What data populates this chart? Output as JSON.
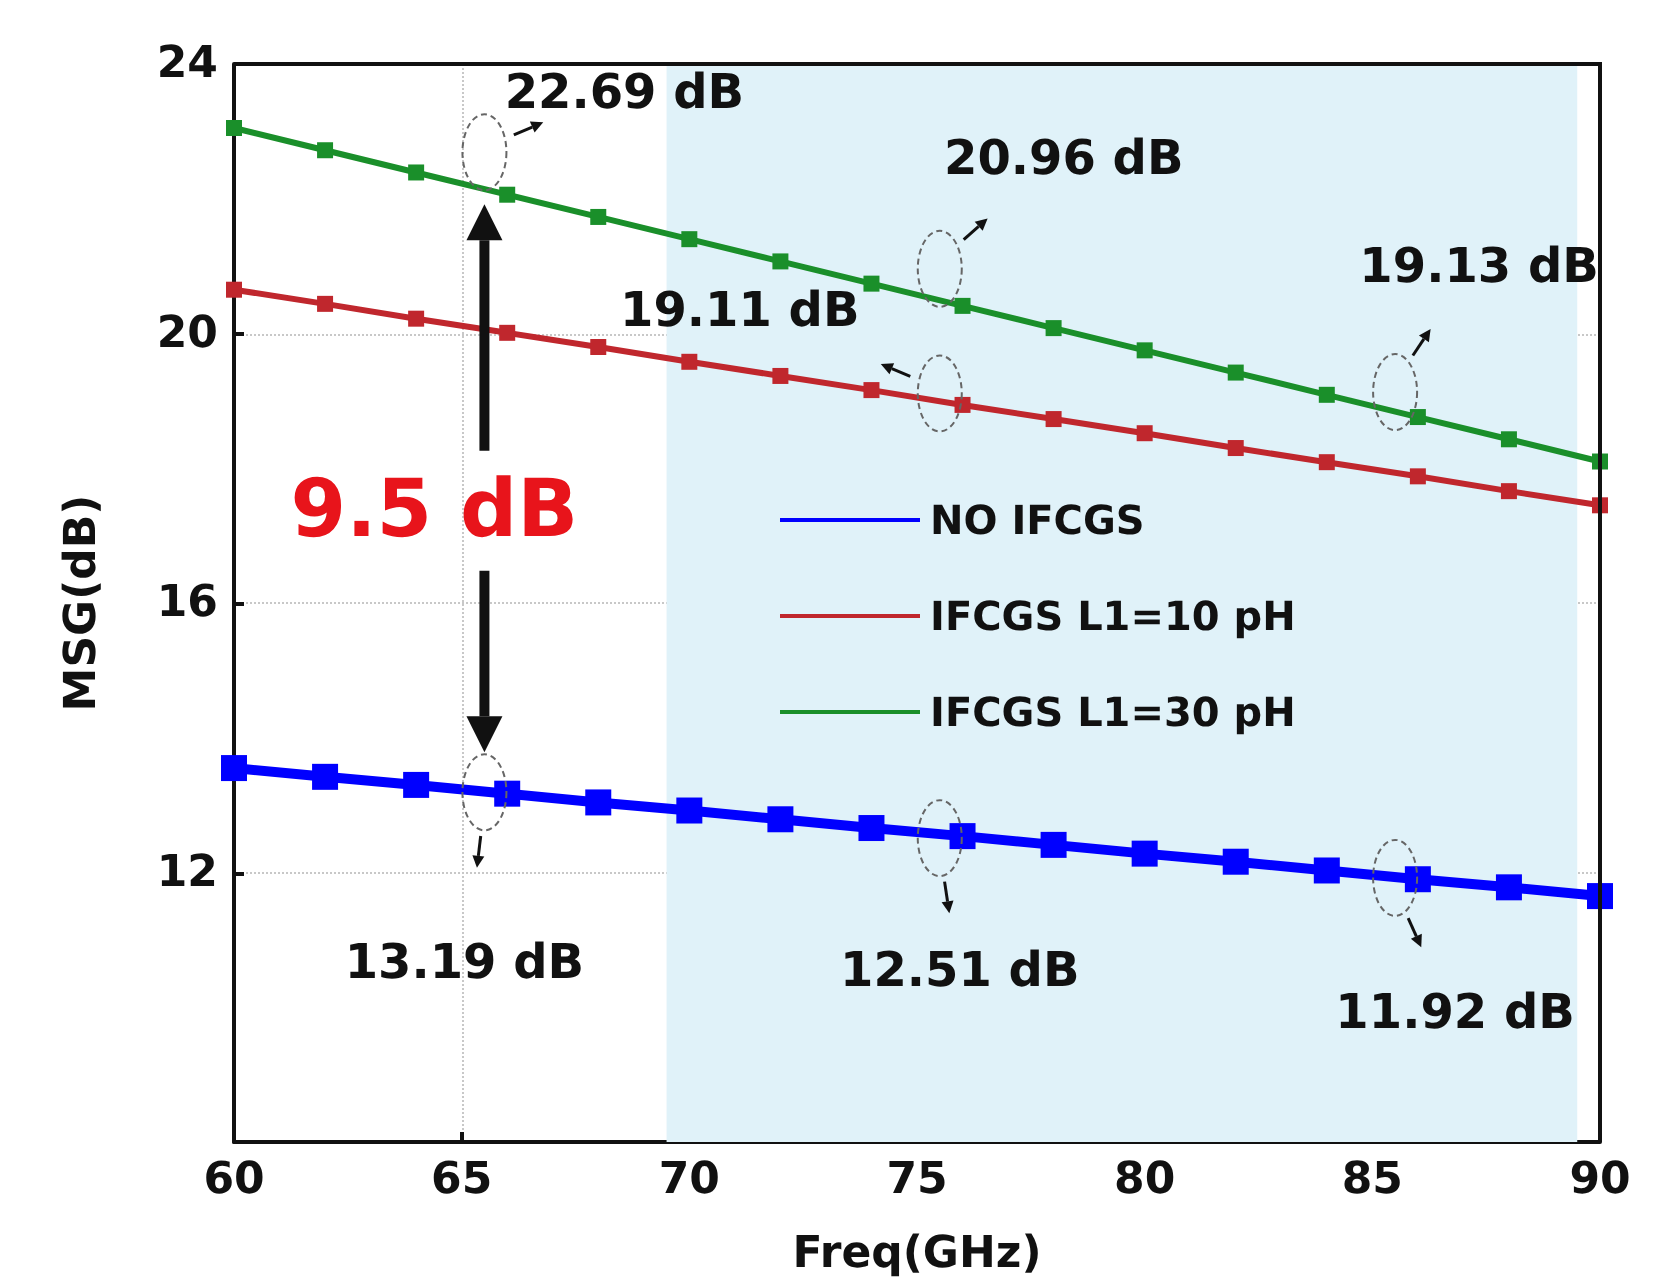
{
  "chart_data": {
    "type": "line",
    "xlabel": "Freq(GHz)",
    "ylabel": "MSG(dB)",
    "x": [
      60,
      62,
      64,
      66,
      68,
      70,
      72,
      74,
      76,
      78,
      80,
      82,
      84,
      86,
      88,
      90
    ],
    "series": [
      {
        "name": "NO IFCGS",
        "color": "#0000ff",
        "marker": "square",
        "values": [
          13.55,
          13.42,
          13.3,
          13.17,
          13.04,
          12.92,
          12.79,
          12.66,
          12.54,
          12.41,
          12.28,
          12.16,
          12.03,
          11.9,
          11.78,
          11.65
        ]
      },
      {
        "name": "IFCGS L1=10 pH",
        "color": "#c0272d",
        "marker": "square",
        "values": [
          20.65,
          20.44,
          20.22,
          20.01,
          19.8,
          19.58,
          19.37,
          19.16,
          18.94,
          18.73,
          18.52,
          18.3,
          18.09,
          17.88,
          17.66,
          17.45
        ]
      },
      {
        "name": "IFCGS L1=30 pH",
        "color": "#1a8f2a",
        "marker": "square",
        "values": [
          23.05,
          22.72,
          22.39,
          22.06,
          21.73,
          21.4,
          21.07,
          20.74,
          20.41,
          20.08,
          19.75,
          19.42,
          19.09,
          18.76,
          18.43,
          18.1
        ]
      }
    ],
    "xlim": [
      60,
      90
    ],
    "xticks": [
      60,
      65,
      70,
      75,
      80,
      85,
      90
    ],
    "ylim": [
      8,
      24
    ],
    "yticks": [
      12,
      16,
      20,
      24
    ],
    "bands": [
      {
        "axis": "x",
        "from": 69.5,
        "to": 89.5,
        "color": "#e0f2f9"
      }
    ],
    "annotations": [
      {
        "text": "22.69 dB",
        "x": 65.5,
        "y": 22.69
      },
      {
        "text": "20.96 dB",
        "x": 75.5,
        "y": 20.96
      },
      {
        "text": "19.13 dB",
        "x": 85.5,
        "y": 19.13
      },
      {
        "text": "19.11 dB",
        "x": 75.5,
        "y": 19.11
      },
      {
        "text": "13.19 dB",
        "x": 65.5,
        "y": 13.19
      },
      {
        "text": "12.51 dB",
        "x": 75.5,
        "y": 12.51
      },
      {
        "text": "11.92 dB",
        "x": 85.5,
        "y": 11.92
      },
      "9.5 dB"
    ],
    "grid": true,
    "legend": "center",
    "line_style": "solid"
  }
}
